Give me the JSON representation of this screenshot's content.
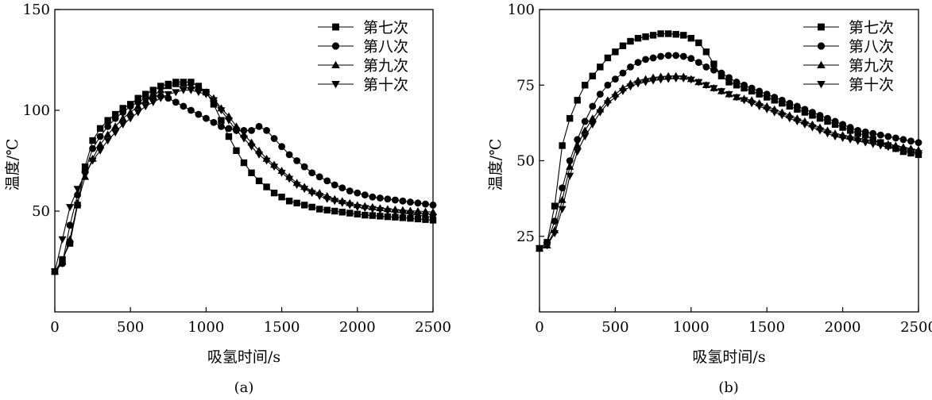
{
  "chart_data": [
    {
      "type": "line",
      "panel_label": "(a)",
      "xlabel": "吸氢时间/s",
      "ylabel": "温度/℃",
      "xlim": [
        0,
        2500
      ],
      "ylim": [
        0,
        150
      ],
      "xticks": [
        0,
        500,
        1000,
        1500,
        2000,
        2500
      ],
      "yticks": [
        50,
        100,
        150
      ],
      "legend_position": "top-right",
      "grid": false,
      "series": [
        {
          "name": "第七次",
          "marker": "square",
          "x": [
            0,
            50,
            100,
            150,
            200,
            250,
            300,
            350,
            400,
            450,
            500,
            550,
            600,
            650,
            700,
            750,
            800,
            850,
            900,
            950,
            1000,
            1050,
            1100,
            1150,
            1200,
            1250,
            1300,
            1350,
            1400,
            1450,
            1500,
            1550,
            1600,
            1650,
            1700,
            1750,
            1800,
            1850,
            1900,
            1950,
            2000,
            2050,
            2100,
            2150,
            2200,
            2250,
            2300,
            2350,
            2400,
            2450,
            2500
          ],
          "y": [
            20,
            26,
            34,
            53,
            72,
            85,
            91,
            95,
            98,
            101,
            103,
            106,
            108,
            110,
            112,
            113,
            114,
            114,
            114,
            112,
            109,
            103,
            95,
            87,
            80,
            74,
            69,
            65,
            62,
            59,
            57,
            55,
            54,
            53,
            52,
            51,
            50.5,
            50,
            49.5,
            49,
            48.5,
            48,
            47.8,
            47.5,
            47.2,
            47,
            46.7,
            46.4,
            46.1,
            45.8,
            45.5
          ]
        },
        {
          "name": "第八次",
          "marker": "circle",
          "x": [
            0,
            50,
            100,
            150,
            200,
            250,
            300,
            350,
            400,
            450,
            500,
            550,
            600,
            650,
            700,
            750,
            800,
            850,
            900,
            950,
            1000,
            1050,
            1100,
            1150,
            1200,
            1250,
            1300,
            1350,
            1400,
            1450,
            1500,
            1550,
            1600,
            1650,
            1700,
            1750,
            1800,
            1850,
            1900,
            1950,
            2000,
            2050,
            2100,
            2150,
            2200,
            2250,
            2300,
            2350,
            2400,
            2450,
            2500
          ],
          "y": [
            20,
            24,
            43,
            58,
            70,
            81,
            87,
            92,
            96,
            99,
            102,
            104,
            106,
            107,
            107,
            106,
            104,
            102,
            100,
            98,
            96,
            94,
            92,
            91,
            90,
            90,
            90,
            92,
            90,
            86,
            82,
            78,
            75,
            72,
            69,
            67,
            65,
            63,
            61.5,
            60,
            59,
            58,
            57,
            56.5,
            56,
            55.5,
            55,
            54.5,
            54,
            53.5,
            53
          ]
        },
        {
          "name": "第九次",
          "marker": "triangle-up",
          "x": [
            0,
            50,
            100,
            150,
            200,
            250,
            300,
            350,
            400,
            450,
            500,
            550,
            600,
            650,
            700,
            750,
            800,
            850,
            900,
            950,
            1000,
            1050,
            1100,
            1150,
            1200,
            1250,
            1300,
            1350,
            1400,
            1450,
            1500,
            1550,
            1600,
            1650,
            1700,
            1750,
            1800,
            1850,
            1900,
            1950,
            2000,
            2050,
            2100,
            2150,
            2200,
            2250,
            2300,
            2350,
            2400,
            2450,
            2500
          ],
          "y": [
            20,
            25,
            36,
            54,
            67,
            76,
            83,
            88,
            92,
            96,
            99,
            102,
            105,
            107,
            110,
            112,
            113,
            113,
            112,
            111,
            109,
            106,
            101,
            97,
            92,
            88,
            84,
            80,
            76,
            73,
            70,
            67,
            64,
            62,
            60,
            59,
            57.5,
            56,
            55,
            54,
            53,
            52.5,
            52,
            51.5,
            51,
            50.8,
            50.5,
            50.2,
            50,
            49.8,
            49.5
          ]
        },
        {
          "name": "第十次",
          "marker": "triangle-down",
          "x": [
            0,
            50,
            100,
            150,
            200,
            250,
            300,
            350,
            400,
            450,
            500,
            550,
            600,
            650,
            700,
            750,
            800,
            850,
            900,
            950,
            1000,
            1050,
            1100,
            1150,
            1200,
            1250,
            1300,
            1350,
            1400,
            1450,
            1500,
            1550,
            1600,
            1650,
            1700,
            1750,
            1800,
            1850,
            1900,
            1950,
            2000,
            2050,
            2100,
            2150,
            2200,
            2250,
            2300,
            2350,
            2400,
            2450,
            2500
          ],
          "y": [
            20,
            36,
            52,
            61,
            68,
            75,
            80,
            85,
            89,
            93,
            96,
            99,
            102,
            104,
            106,
            108,
            109,
            110,
            110,
            109,
            108,
            105,
            100,
            95,
            90,
            86,
            82,
            78,
            75,
            72,
            69,
            66,
            63,
            61,
            59,
            57.5,
            56,
            55,
            54,
            53,
            52,
            51.5,
            51,
            50.5,
            50,
            49.5,
            49,
            48.5,
            48,
            47.5,
            47
          ]
        }
      ]
    },
    {
      "type": "line",
      "panel_label": "(b)",
      "xlabel": "吸氢时间/s",
      "ylabel": "温度/℃",
      "xlim": [
        0,
        2500
      ],
      "ylim": [
        0,
        100
      ],
      "xticks": [
        0,
        500,
        1000,
        1500,
        2000,
        2500
      ],
      "yticks": [
        25,
        50,
        75,
        100
      ],
      "legend_position": "top-right",
      "grid": false,
      "series": [
        {
          "name": "第七次",
          "marker": "square",
          "x": [
            0,
            50,
            100,
            150,
            200,
            250,
            300,
            350,
            400,
            450,
            500,
            550,
            600,
            650,
            700,
            750,
            800,
            850,
            900,
            950,
            1000,
            1050,
            1100,
            1150,
            1200,
            1250,
            1300,
            1350,
            1400,
            1450,
            1500,
            1550,
            1600,
            1650,
            1700,
            1750,
            1800,
            1850,
            1900,
            1950,
            2000,
            2050,
            2100,
            2150,
            2200,
            2250,
            2300,
            2350,
            2400,
            2450,
            2500
          ],
          "y": [
            21,
            23,
            35,
            55,
            64,
            70,
            75,
            78,
            81,
            84,
            86,
            88,
            89.5,
            90.5,
            91,
            91.5,
            92,
            92,
            91.8,
            91.5,
            90.5,
            89,
            86,
            82,
            78,
            76,
            75,
            74,
            73,
            72,
            71,
            70,
            69,
            68,
            67,
            66,
            65,
            64,
            63,
            62,
            61,
            60,
            59,
            58.5,
            57,
            56,
            55,
            54,
            53,
            52.5,
            52
          ]
        },
        {
          "name": "第八次",
          "marker": "circle",
          "x": [
            0,
            50,
            100,
            150,
            200,
            250,
            300,
            350,
            400,
            450,
            500,
            550,
            600,
            650,
            700,
            750,
            800,
            850,
            900,
            950,
            1000,
            1050,
            1100,
            1150,
            1200,
            1250,
            1300,
            1350,
            1400,
            1450,
            1500,
            1550,
            1600,
            1650,
            1700,
            1750,
            1800,
            1850,
            1900,
            1950,
            2000,
            2050,
            2100,
            2150,
            2200,
            2250,
            2300,
            2350,
            2400,
            2450,
            2500
          ],
          "y": [
            21,
            23,
            30,
            41,
            50,
            57,
            63,
            68,
            72,
            75,
            77,
            79,
            81,
            82.5,
            83.5,
            84,
            84.5,
            84.8,
            84.8,
            84.5,
            83.8,
            82.5,
            81,
            80,
            79,
            77.5,
            76,
            75,
            74,
            73,
            72,
            71,
            70,
            69,
            68,
            67,
            66,
            65,
            64,
            63,
            62,
            61,
            60,
            59.5,
            59,
            58.5,
            58,
            57.5,
            57,
            56.5,
            56
          ]
        },
        {
          "name": "第九次",
          "marker": "triangle-up",
          "x": [
            0,
            50,
            100,
            150,
            200,
            250,
            300,
            350,
            400,
            450,
            500,
            550,
            600,
            650,
            700,
            750,
            800,
            850,
            900,
            950,
            1000,
            1050,
            1100,
            1150,
            1200,
            1250,
            1300,
            1350,
            1400,
            1450,
            1500,
            1550,
            1600,
            1650,
            1700,
            1750,
            1800,
            1850,
            1900,
            1950,
            2000,
            2050,
            2100,
            2150,
            2200,
            2250,
            2300,
            2350,
            2400,
            2450,
            2500
          ],
          "y": [
            21,
            22,
            27,
            37,
            48,
            55,
            60,
            64,
            67,
            70,
            72,
            74,
            75.5,
            76.5,
            77,
            77.5,
            77.8,
            78,
            78,
            77.8,
            77,
            76,
            75,
            74,
            73,
            72,
            71,
            70.5,
            70,
            69,
            68,
            67,
            66,
            65,
            64,
            63,
            62,
            61,
            60,
            59,
            58.5,
            58,
            57.5,
            57,
            56.5,
            56,
            55.5,
            55,
            54.5,
            54,
            53.5
          ]
        },
        {
          "name": "第十次",
          "marker": "triangle-down",
          "x": [
            0,
            50,
            100,
            150,
            200,
            250,
            300,
            350,
            400,
            450,
            500,
            550,
            600,
            650,
            700,
            750,
            800,
            850,
            900,
            950,
            1000,
            1050,
            1100,
            1150,
            1200,
            1250,
            1300,
            1350,
            1400,
            1450,
            1500,
            1550,
            1600,
            1650,
            1700,
            1750,
            1800,
            1850,
            1900,
            1950,
            2000,
            2050,
            2100,
            2150,
            2200,
            2250,
            2300,
            2350,
            2400,
            2450,
            2500
          ],
          "y": [
            21,
            22,
            26,
            34,
            45,
            53,
            58,
            62,
            66,
            69,
            71,
            73,
            74.5,
            75.5,
            76,
            76.5,
            76.8,
            77,
            77.2,
            77.2,
            76.8,
            76,
            75,
            74,
            73,
            72,
            71,
            70,
            69,
            68,
            67,
            66,
            65,
            64,
            63,
            62,
            61,
            60,
            59,
            58,
            57.5,
            57,
            56.5,
            56,
            55.5,
            55,
            54.5,
            54,
            53.5,
            53,
            52.5
          ]
        }
      ]
    }
  ]
}
